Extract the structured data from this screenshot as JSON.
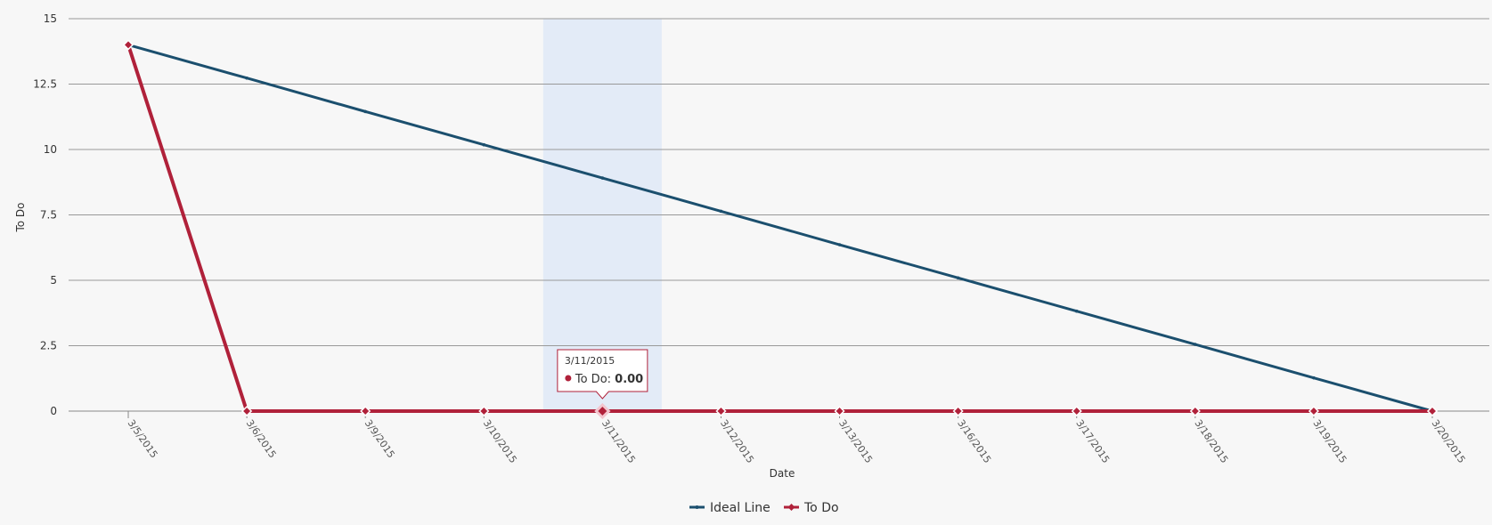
{
  "chart_data": {
    "type": "line",
    "xlabel": "Date",
    "ylabel": "To Do",
    "ylim": [
      0,
      15
    ],
    "yticks": [
      "0",
      "2.5",
      "5",
      "7.5",
      "10",
      "12.5",
      "15"
    ],
    "categories": [
      "3/5/2015",
      "3/6/2015",
      "3/9/2015",
      "3/10/2015",
      "3/11/2015",
      "3/12/2015",
      "3/13/2015",
      "3/16/2015",
      "3/17/2015",
      "3/18/2015",
      "3/19/2015",
      "3/20/2015"
    ],
    "series": [
      {
        "name": "Ideal Line",
        "color": "#1b4f6e",
        "marker": "none",
        "values": [
          14,
          12.73,
          11.45,
          10.18,
          8.91,
          7.64,
          6.36,
          5.09,
          3.82,
          2.55,
          1.27,
          0
        ]
      },
      {
        "name": "To Do",
        "color": "#b0213a",
        "marker": "diamond",
        "values": [
          14,
          0,
          0,
          0,
          0,
          0,
          0,
          0,
          0,
          0,
          0,
          0
        ]
      }
    ],
    "grid": true,
    "legend": "bottom-center",
    "highlight": {
      "category": "3/11/2015",
      "band_color": "#e3ebf7"
    },
    "tooltip": {
      "date": "3/11/2015",
      "series_label": "To Do:",
      "value": "0.00"
    }
  }
}
